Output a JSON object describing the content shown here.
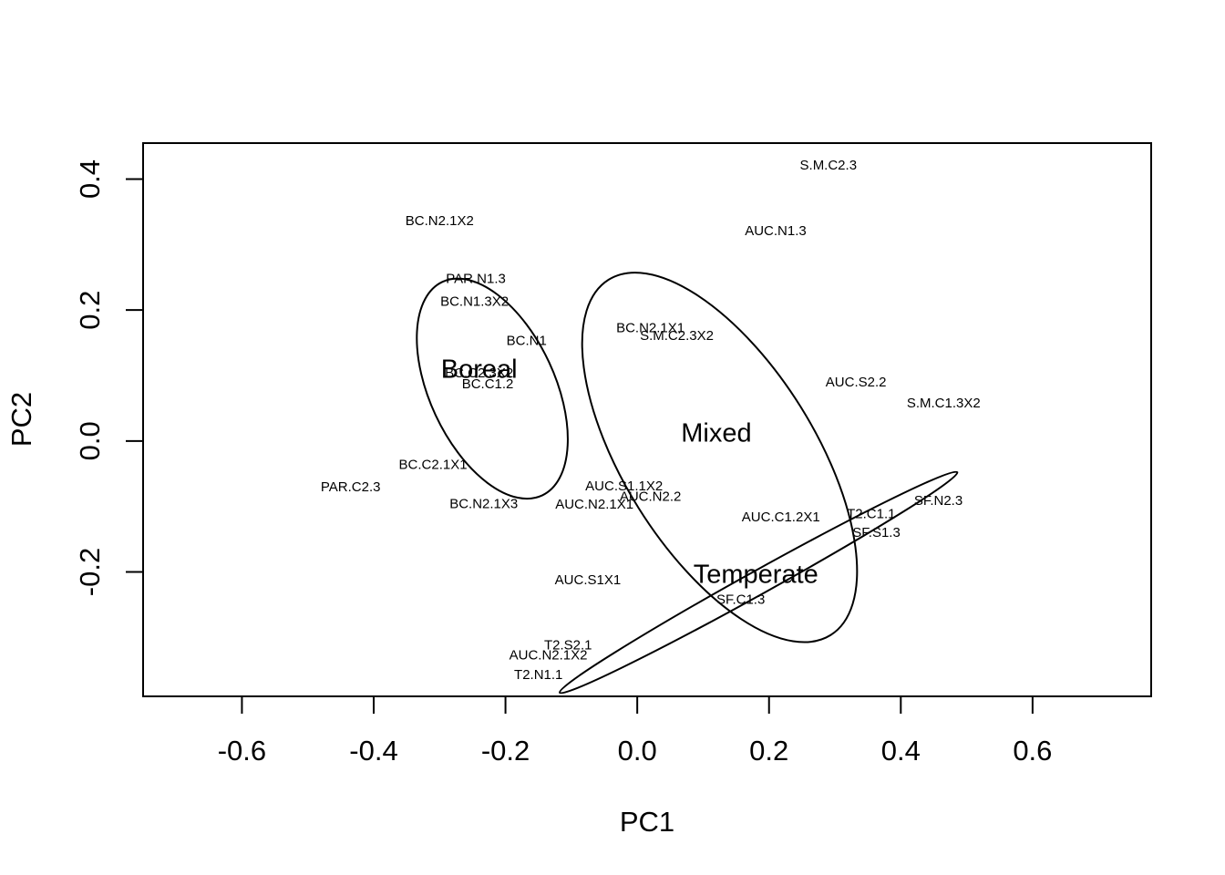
{
  "chart_data": {
    "type": "scatter",
    "xlabel": "PC1",
    "ylabel": "PC2",
    "xlim": [
      -0.75,
      0.78
    ],
    "ylim": [
      -0.39,
      0.455
    ],
    "x_ticks": [
      -0.6,
      -0.4,
      -0.2,
      0.0,
      0.2,
      0.4,
      0.6
    ],
    "x_tick_labels": [
      "-0.6",
      "-0.4",
      "-0.2",
      "0.0",
      "0.2",
      "0.4",
      "0.6"
    ],
    "y_ticks": [
      -0.2,
      0.0,
      0.2,
      0.4
    ],
    "y_tick_labels": [
      "-0.2",
      "0.0",
      "0.2",
      "0.4"
    ],
    "grid": false,
    "points": [
      {
        "label": "S.M.C2.3",
        "x": 0.29,
        "y": 0.42
      },
      {
        "label": "BC.N2.1X2",
        "x": -0.3,
        "y": 0.335
      },
      {
        "label": "AUC.N1.3",
        "x": 0.21,
        "y": 0.32
      },
      {
        "label": "PAR.N1.3",
        "x": -0.245,
        "y": 0.247
      },
      {
        "label": "BC.N1.3X2",
        "x": -0.247,
        "y": 0.212
      },
      {
        "label": "BC.N1",
        "x": -0.168,
        "y": 0.152
      },
      {
        "label": "BC.N2.1X1",
        "x": 0.02,
        "y": 0.172
      },
      {
        "label": "S.M.C2.3X2",
        "x": 0.06,
        "y": 0.16
      },
      {
        "label": "BC.C2.3X2",
        "x": -0.24,
        "y": 0.103
      },
      {
        "label": "BC.C1.2",
        "x": -0.227,
        "y": 0.086
      },
      {
        "label": "AUC.S2.2",
        "x": 0.332,
        "y": 0.089
      },
      {
        "label": "S.M.C1.3X2",
        "x": 0.465,
        "y": 0.057
      },
      {
        "label": "BC.C2.1X1",
        "x": -0.31,
        "y": -0.037
      },
      {
        "label": "PAR.C2.3",
        "x": -0.435,
        "y": -0.071
      },
      {
        "label": "AUC.S1.1X2",
        "x": -0.02,
        "y": -0.07
      },
      {
        "label": "AUC.N2.2",
        "x": 0.02,
        "y": -0.086
      },
      {
        "label": "BC.N2.1X3",
        "x": -0.233,
        "y": -0.097
      },
      {
        "label": "AUC.N2.1X1",
        "x": -0.065,
        "y": -0.098
      },
      {
        "label": "AUC.C1.2X1",
        "x": 0.218,
        "y": -0.117
      },
      {
        "label": "T2.C1.1",
        "x": 0.355,
        "y": -0.112
      },
      {
        "label": "SF.N2.3",
        "x": 0.457,
        "y": -0.092
      },
      {
        "label": "SF.S1.3",
        "x": 0.363,
        "y": -0.141
      },
      {
        "label": "AUC.S1X1",
        "x": -0.075,
        "y": -0.213
      },
      {
        "label": "SF.C1.3",
        "x": 0.157,
        "y": -0.243
      },
      {
        "label": "T2.S2.1",
        "x": -0.105,
        "y": -0.313
      },
      {
        "label": "AUC.N2.1X2",
        "x": -0.135,
        "y": -0.328
      },
      {
        "label": "T2.N1.1",
        "x": -0.15,
        "y": -0.358
      }
    ],
    "groups": [
      {
        "name": "Boreal",
        "label_x": -0.24,
        "label_y": 0.107,
        "ellipse": {
          "cx": -0.22,
          "cy": 0.08,
          "rx": 0.095,
          "ry": 0.18,
          "angle": -25
        }
      },
      {
        "name": "Mixed",
        "label_x": 0.12,
        "label_y": 0.01,
        "ellipse": {
          "cx": 0.125,
          "cy": -0.025,
          "rx": 0.145,
          "ry": 0.32,
          "angle": -32
        }
      },
      {
        "name": "Temperate",
        "label_x": 0.18,
        "label_y": -0.206,
        "ellipse": {
          "cx": 0.184,
          "cy": -0.216,
          "rx": 0.345,
          "ry": 0.018,
          "angle": -29
        }
      }
    ]
  }
}
